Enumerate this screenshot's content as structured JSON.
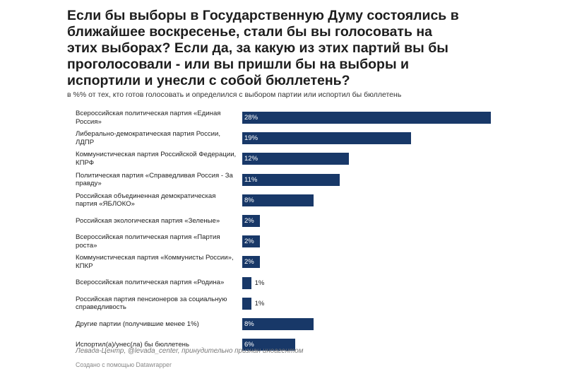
{
  "chart_data": {
    "type": "bar",
    "orientation": "horizontal",
    "title": "Если бы выборы в Государственную Думу состоялись в ближайшее воскресенье, стали бы вы голосовать на этих выборах? Если да, за какую из этих партий вы бы проголосовали - или вы пришли бы на выборы и испортили и унесли с собой бюллетень?",
    "subtitle": "в %% от тех, кто готов голосовать и определился с выбором партии или испортил бы бюллетень",
    "xlim": [
      0,
      28
    ],
    "unit": "%",
    "bar_color": "#183868",
    "categories": [
      "Всероссийская политическая партия «Единая Россия»",
      "Либерально-демократическая партия России, ЛДПР",
      "Коммунистическая партия Российской Федерации, КПРФ",
      "Политическая партия «Справедливая Россия - За правду»",
      "Российская объединенная демократическая партия «ЯБЛОКО»",
      "Российская экологическая партия «Зеленые»",
      "Всероссийская политическая партия «Партия роста»",
      "Коммунистическая партия «Коммунисты России», КПКР",
      "Всероссийская политическая партия «Родина»",
      "Российская партия пенсионеров за социальную справедливость",
      "Другие партии (получившие менее 1%)",
      "Испортил(а)/унес(ла) бы бюллетень"
    ],
    "values": [
      28,
      19,
      12,
      11,
      8,
      2,
      2,
      2,
      1,
      1,
      8,
      6
    ],
    "value_labels": [
      "28%",
      "19%",
      "12%",
      "11%",
      "8%",
      "2%",
      "2%",
      "2%",
      "1%",
      "1%",
      "8%",
      "6%"
    ]
  },
  "footer": {
    "source": "Левада-Центр, @levada_center, принудительно признан иноагентом",
    "credit": "Создано с помощью Datawrapper"
  }
}
